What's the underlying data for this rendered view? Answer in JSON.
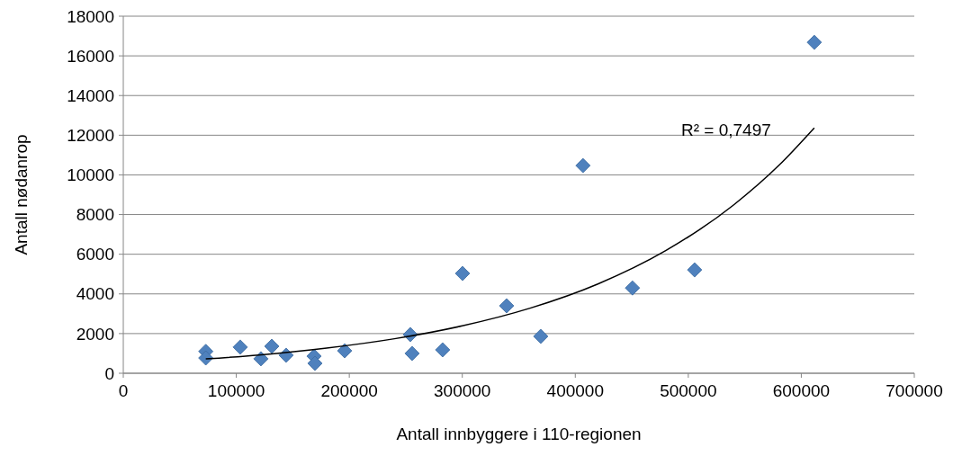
{
  "chart_data": {
    "type": "scatter",
    "xlabel": "Antall innbyggere i 110-regionen",
    "ylabel": "Antall nødanrop",
    "xlim": [
      0,
      700000
    ],
    "xticks": [
      0,
      100000,
      200000,
      300000,
      400000,
      500000,
      600000,
      700000
    ],
    "ylim": [
      0,
      18000
    ],
    "yticks": [
      0,
      2000,
      4000,
      6000,
      8000,
      10000,
      12000,
      14000,
      16000,
      18000
    ],
    "grid": "y",
    "series": [
      {
        "color": "#4f81bd",
        "marker": "diamond",
        "x": [
          73000,
          73000,
          103500,
          121800,
          131400,
          144100,
          168800,
          169600,
          195900,
          254000,
          255600,
          282600,
          300200,
          339200,
          369400,
          406800,
          450600,
          505600,
          611500
        ],
        "values": [
          1100,
          770,
          1320,
          730,
          1360,
          910,
          860,
          500,
          1130,
          1950,
          1000,
          1180,
          5030,
          3400,
          1860,
          10470,
          4300,
          5210,
          16680
        ]
      },
      {
        "type": "line",
        "color": "#000000",
        "marker": "none",
        "line_style": "solid",
        "x": [
          73000,
          120000,
          180000,
          240000,
          300000,
          360000,
          420000,
          480000,
          540000,
          580000,
          611500
        ],
        "values": [
          720,
          920,
          1270,
          1740,
          2390,
          3280,
          4500,
          6180,
          8480,
          10470,
          12370
        ]
      }
    ],
    "annotations": [
      "R² = 0,7497"
    ]
  }
}
